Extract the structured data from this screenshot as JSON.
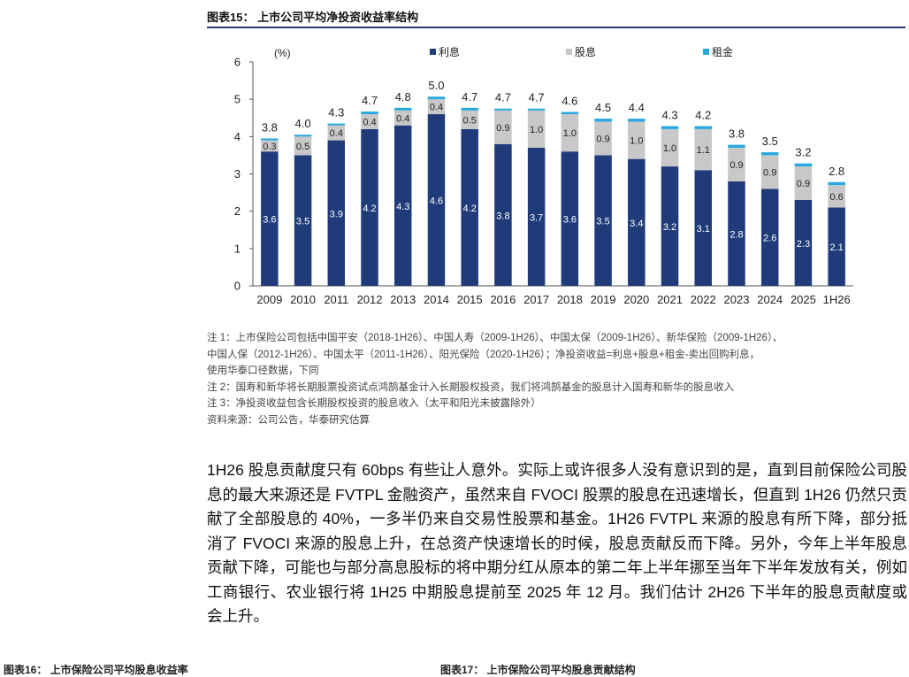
{
  "figure": {
    "title": "图表15： 上市公司平均净投资收益率结构"
  },
  "chart_data": {
    "type": "bar",
    "stacked": true,
    "unit_label": "(%)",
    "categories": [
      "2009",
      "2010",
      "2011",
      "2012",
      "2013",
      "2014",
      "2015",
      "2016",
      "2017",
      "2018",
      "2019",
      "2020",
      "2021",
      "2022",
      "2023",
      "2024",
      "2025",
      "1H26"
    ],
    "series": [
      {
        "name": "利息",
        "color": "#1f3b7a",
        "values": [
          3.6,
          3.5,
          3.9,
          4.2,
          4.3,
          4.6,
          4.2,
          3.8,
          3.7,
          3.6,
          3.5,
          3.4,
          3.2,
          3.1,
          2.8,
          2.6,
          2.3,
          2.1
        ]
      },
      {
        "name": "股息",
        "color": "#c8c8c8",
        "values": [
          0.3,
          0.5,
          0.4,
          0.4,
          0.4,
          0.4,
          0.5,
          0.9,
          1.0,
          1.0,
          0.9,
          1.0,
          1.0,
          1.1,
          0.9,
          0.9,
          0.9,
          0.6
        ]
      },
      {
        "name": "租金",
        "color": "#27a8e0",
        "values": [
          0.05,
          0.05,
          0.05,
          0.07,
          0.07,
          0.07,
          0.07,
          0.05,
          0.05,
          0.06,
          0.08,
          0.08,
          0.08,
          0.08,
          0.08,
          0.08,
          0.08,
          0.08
        ]
      }
    ],
    "totals": [
      "3.8",
      "4.0",
      "4.3",
      "4.7",
      "4.8",
      "5.0",
      "4.7",
      "4.7",
      "4.7",
      "4.6",
      "4.5",
      "4.4",
      "4.3",
      "4.2",
      "3.8",
      "3.5",
      "3.2",
      "2.8"
    ],
    "interest_labels": [
      "3.6",
      "3.5",
      "3.9",
      "4.2",
      "4.3",
      "4.6",
      "4.2",
      "3.8",
      "3.7",
      "3.6",
      "3.5",
      "3.4",
      "3.2",
      "3.1",
      "2.8",
      "2.6",
      "2.3",
      "2.1"
    ],
    "dividend_labels": [
      "0.3",
      "0.5",
      "0.4",
      "0.4",
      "0.4",
      "0.4",
      "0.5",
      "0.9",
      "1.0",
      "1.0",
      "0.9",
      "1.0",
      "1.0",
      "1.1",
      "0.9",
      "0.9",
      "0.9",
      "0.6"
    ],
    "ylim": [
      0,
      6
    ],
    "yticks": [
      "0",
      "1",
      "2",
      "3",
      "4",
      "5",
      "6"
    ],
    "legend_position": "top",
    "grid": false
  },
  "notes": [
    "注 1：上市保险公司包括中国平安（2018-1H26）、中国人寿（2009-1H26）、中国太保（2009-1H26）、新华保险（2009-1H26）、",
    "中国人保（2012-1H26）、中国太平（2011-1H26）、阳光保险（2020-1H26）；净投资收益=利息+股息+租金-卖出回购利息，",
    "使用华泰口径数据，下同",
    "注 2：国寿和新华将长期股票投资试点鸿鹄基金计入长期股权投资，我们将鸿鹄基金的股息计入国寿和新华的股息收入",
    "注 3：净投资收益包含长期股权投资的股息收入（太平和阳光未披露除外）",
    "资料来源：公司公告，华泰研究估算"
  ],
  "body_text": "1H26 股息贡献度只有 60bps 有些让人意外。实际上或许很多人没有意识到的是，直到目前保险公司股息的最大来源还是 FVTPL 金融资产，虽然来自 FVOCI 股票的股息在迅速增长，但直到 1H26 仍然只贡献了全部股息的 40%，一多半仍来自交易性股票和基金。1H26 FVTPL 来源的股息有所下降，部分抵消了 FVOCI 来源的股息上升，在总资产快速增长的时候，股息贡献反而下降。另外，今年上半年股息贡献下降，可能也与部分高息股标的将中期分红从原本的第二年上半年挪至当年下半年发放有关，例如工商银行、农业银行将 1H25 中期股息提前至 2025 年 12 月。我们估计 2H26 下半年的股息贡献度或会上升。",
  "bottom_cut": {
    "left": "图表16： 上市保险公司平均股息收益率",
    "right": "图表17： 上市保险公司平均股息贡献结构"
  }
}
